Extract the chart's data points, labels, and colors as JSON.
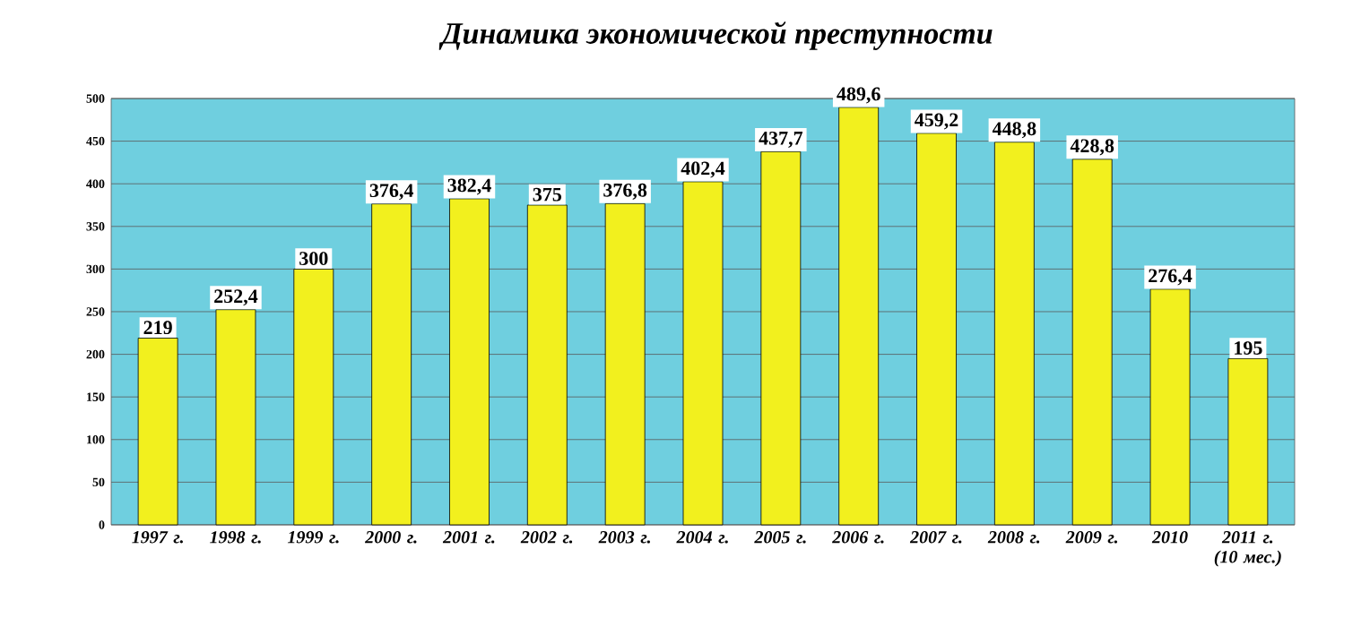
{
  "chart_data": {
    "type": "bar",
    "title": "Динамика экономической преступности",
    "categories": [
      "1997 г.",
      "1998 г.",
      "1999 г.",
      "2000 г.",
      "2001 г.",
      "2002 г.",
      "2003 г.",
      "2004 г.",
      "2005 г.",
      "2006 г.",
      "2007 г.",
      "2008 г.",
      "2009 г.",
      "2010",
      "2011 г. (10 мес.)"
    ],
    "values": [
      219,
      252.4,
      300,
      376.4,
      382.4,
      375,
      376.8,
      402.4,
      437.7,
      489.6,
      459.2,
      448.8,
      428.8,
      276.4,
      195
    ],
    "value_labels": [
      "219",
      "252,4",
      "300",
      "376,4",
      "382,4",
      "375",
      "376,8",
      "402,4",
      "437,7",
      "489,6",
      "459,2",
      "448,8",
      "428,8",
      "276,4",
      "195"
    ],
    "color": "#f2f01e",
    "ylim": [
      0,
      500
    ],
    "yticks": [
      0,
      50,
      100,
      150,
      200,
      250,
      300,
      350,
      400,
      450,
      500
    ],
    "grid": "y"
  }
}
